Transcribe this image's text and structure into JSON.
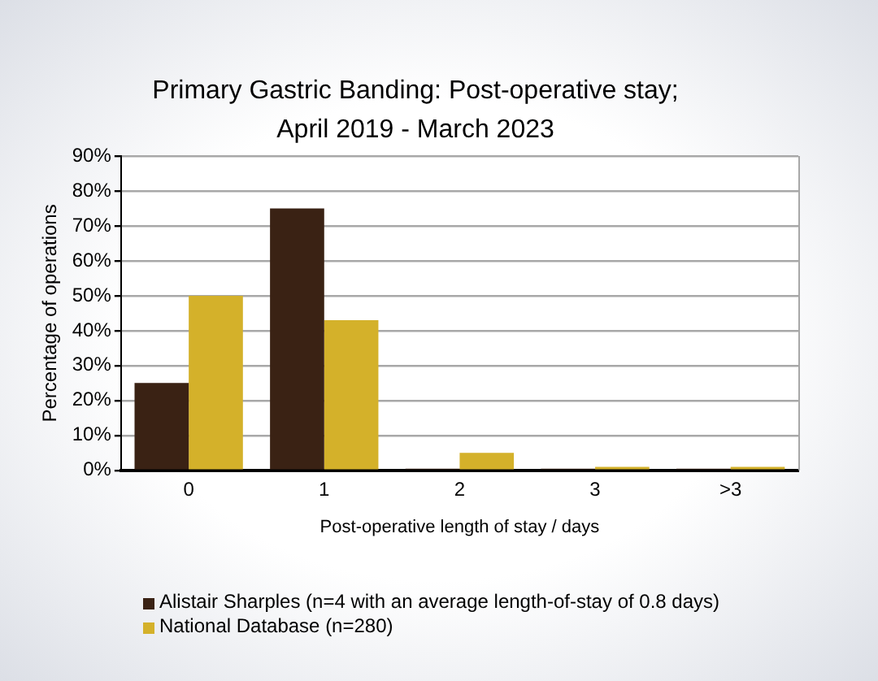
{
  "chart_data": {
    "type": "bar",
    "title": "Primary Gastric Banding: Post-operative stay;\nApril 2019 - March 2023",
    "xlabel": "Post-operative length of stay / days",
    "ylabel": "Percentage of operations",
    "categories": [
      "0",
      "1",
      "2",
      "3",
      ">3"
    ],
    "series": [
      {
        "name": "Alistair Sharples (n=4 with an average length-of-stay of 0.8 days)",
        "color": "#3a2214",
        "values": [
          25,
          75,
          0,
          0,
          0
        ]
      },
      {
        "name": "National Database (n=280)",
        "color": "#d4b12a",
        "values": [
          50,
          43,
          5,
          1,
          1
        ]
      }
    ],
    "ylim": [
      0,
      90
    ],
    "yticks": [
      {
        "value": 0,
        "label": "0%"
      },
      {
        "value": 10,
        "label": "10%"
      },
      {
        "value": 20,
        "label": "20%"
      },
      {
        "value": 30,
        "label": "30%"
      },
      {
        "value": 40,
        "label": "40%"
      },
      {
        "value": 50,
        "label": "50%"
      },
      {
        "value": 60,
        "label": "60%"
      },
      {
        "value": 70,
        "label": "70%"
      },
      {
        "value": 80,
        "label": "80%"
      },
      {
        "value": 90,
        "label": "90%"
      }
    ],
    "grid": "y",
    "legend": "bottom left"
  }
}
